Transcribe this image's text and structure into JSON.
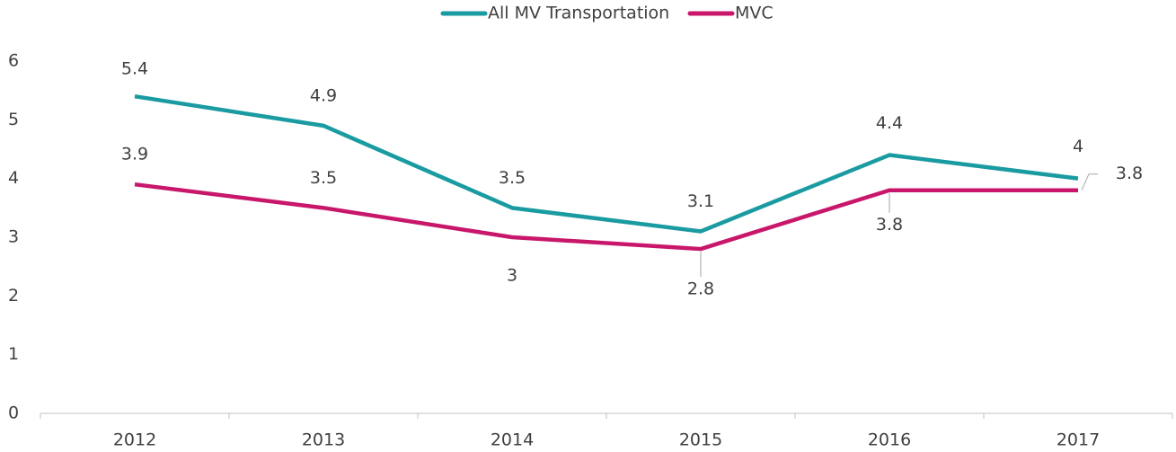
{
  "chart_data": {
    "type": "line",
    "categories": [
      "2012",
      "2013",
      "2014",
      "2015",
      "2016",
      "2017"
    ],
    "series": [
      {
        "name": "All MV Transportation",
        "color": "#1a9ba1",
        "values": [
          5.4,
          4.9,
          3.5,
          3.1,
          4.4,
          4
        ]
      },
      {
        "name": "MVC",
        "color": "#c8176b",
        "values": [
          3.9,
          3.5,
          3,
          2.8,
          3.8,
          3.8
        ]
      }
    ],
    "ylim": [
      0,
      6
    ],
    "yticks": [
      0,
      1,
      2,
      3,
      4,
      5,
      6
    ],
    "grid": false,
    "legend": "top"
  }
}
